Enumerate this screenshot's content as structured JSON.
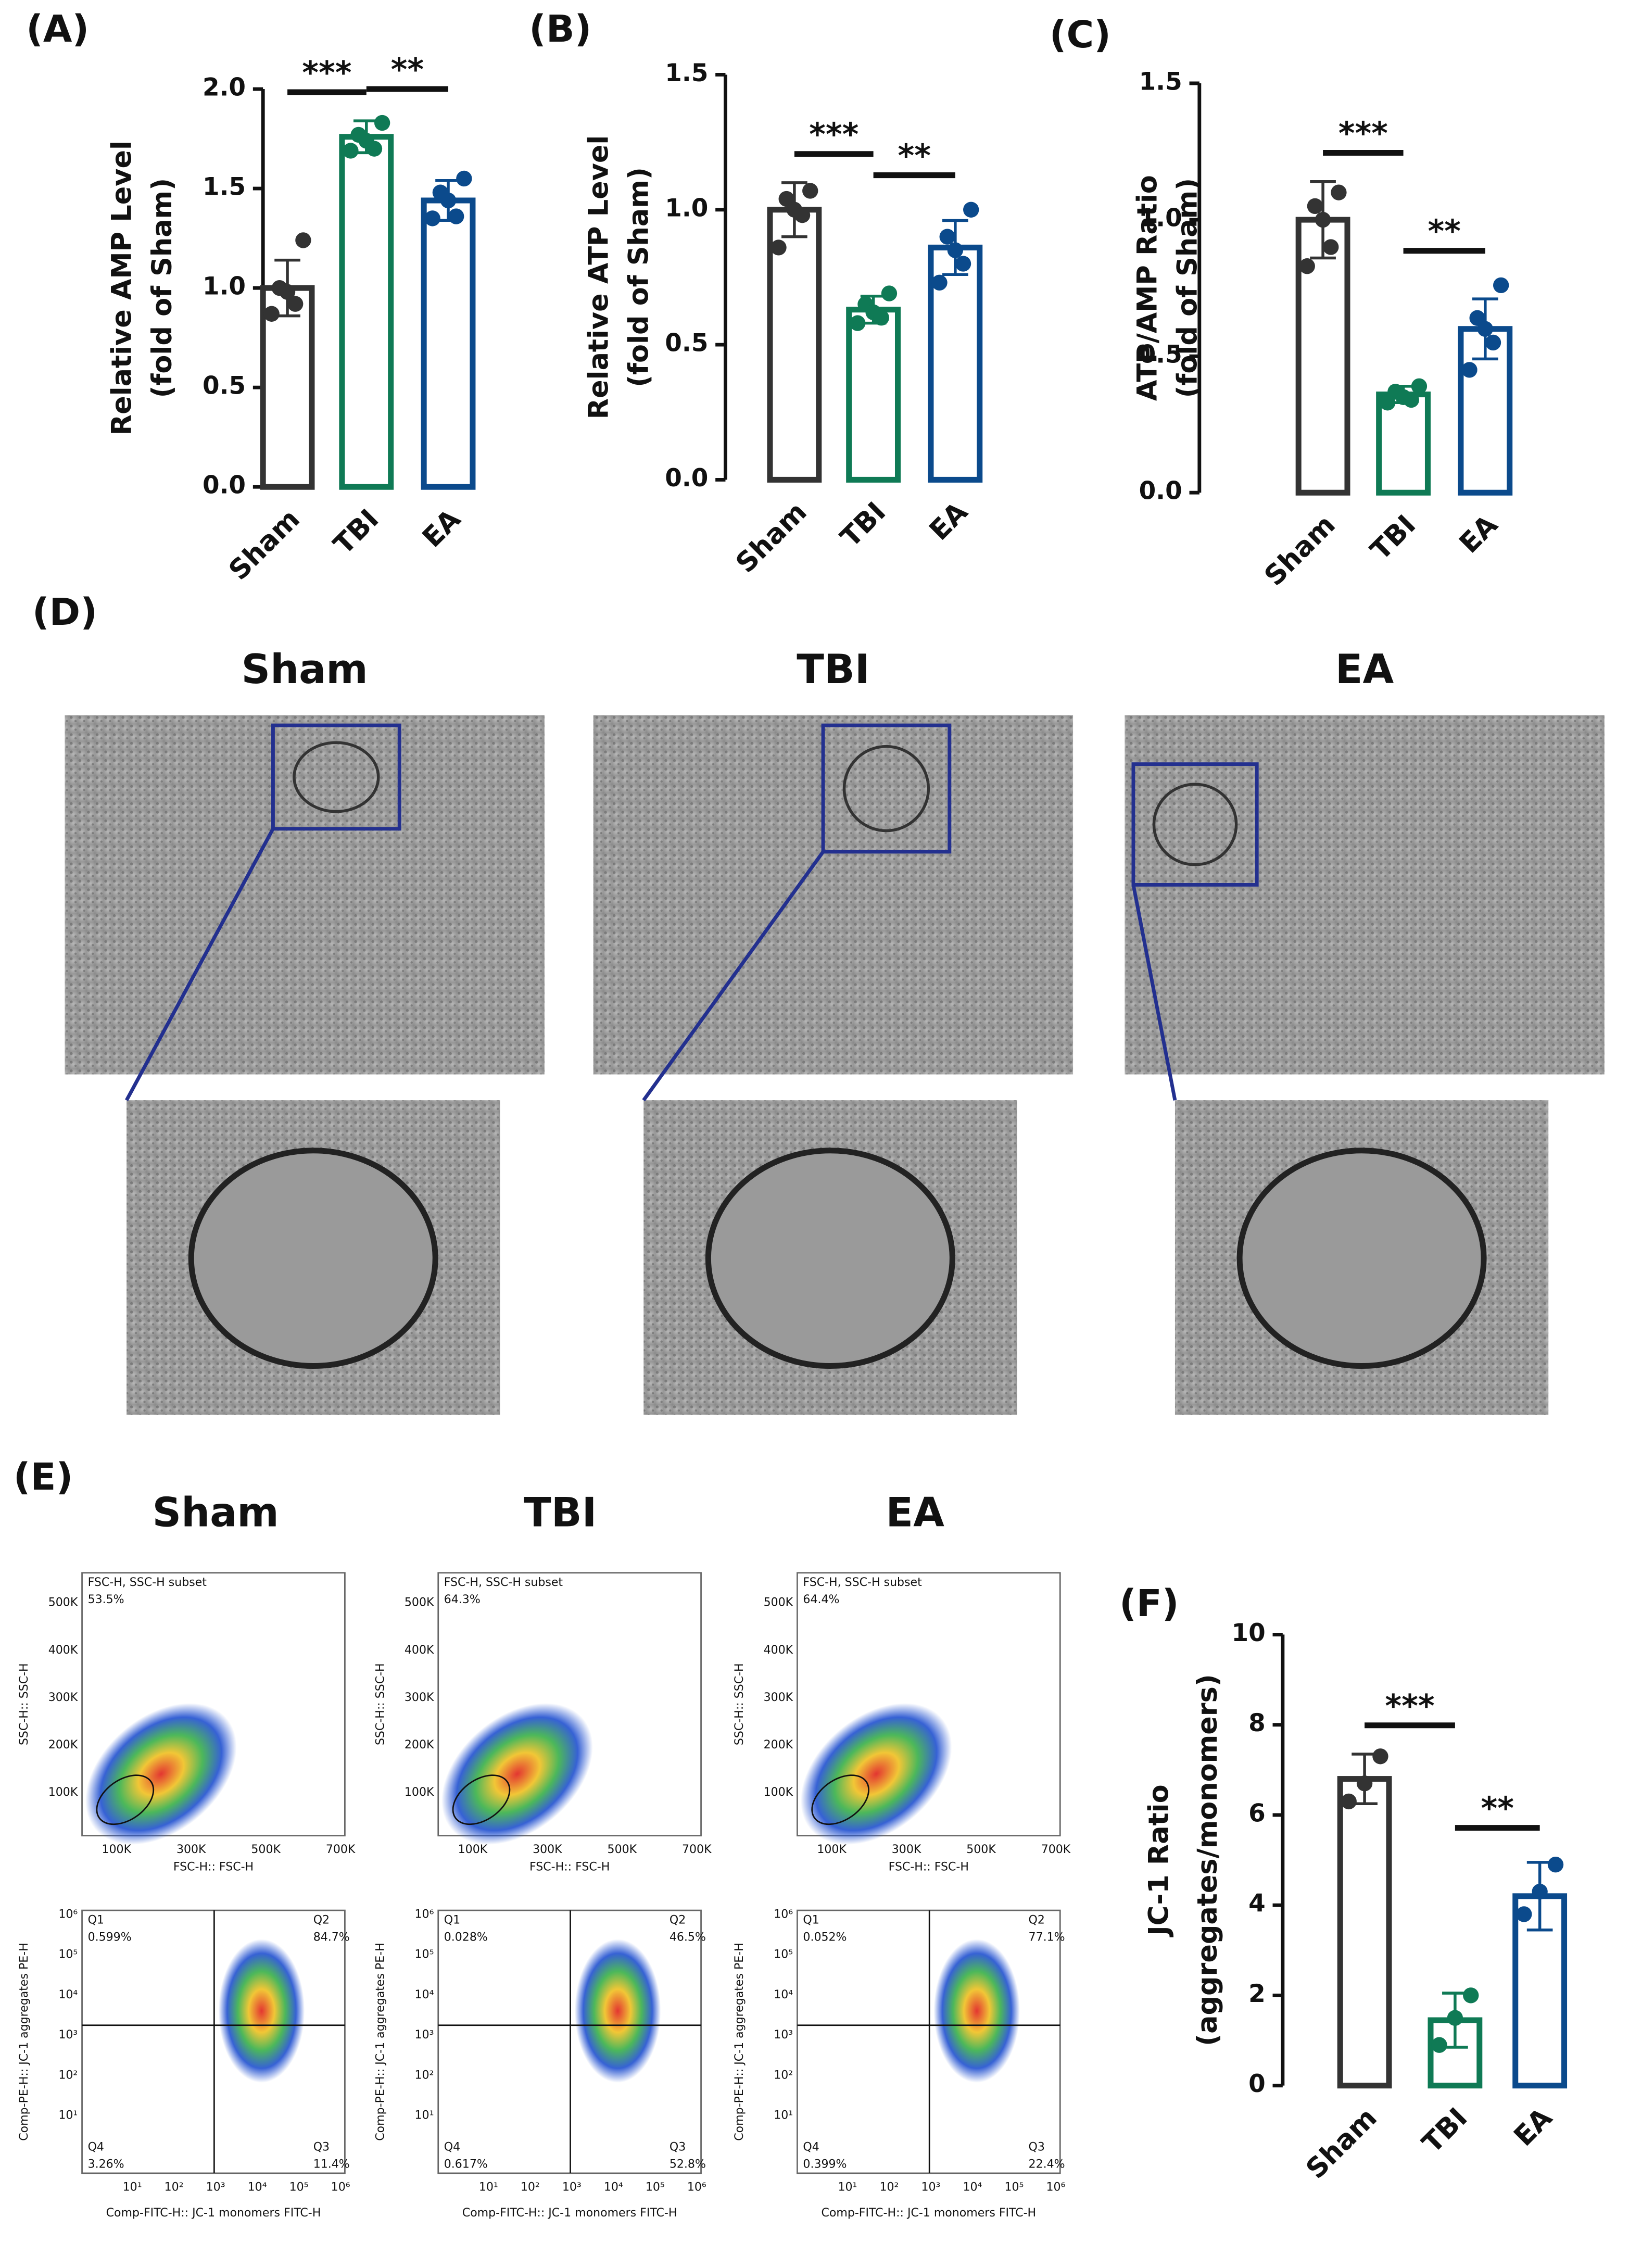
{
  "chart_data": [
    {
      "type": "bar",
      "panel": "(A)",
      "ylabel": [
        "Relative AMP Level",
        "(fold of Sham)"
      ],
      "categories": [
        "Sham",
        "TBI",
        "EA"
      ],
      "colors": [
        "#333333",
        "#0f7a55",
        "#0b4a8c"
      ],
      "values": [
        1.0,
        1.76,
        1.44
      ],
      "errors": [
        0.14,
        0.08,
        0.1
      ],
      "points": [
        [
          1.24,
          1.0,
          0.98,
          0.92,
          0.87
        ],
        [
          1.83,
          1.77,
          1.74,
          1.7,
          1.69
        ],
        [
          1.55,
          1.48,
          1.44,
          1.36,
          1.35
        ]
      ],
      "significance": [
        "***",
        "**"
      ],
      "ylim": [
        0,
        2.0
      ],
      "yticks": [
        {
          "value": 0,
          "label": "0.0"
        },
        {
          "value": 0.5,
          "label": "0.5"
        },
        {
          "value": 1,
          "label": "1.0"
        },
        {
          "value": 1.5,
          "label": "1.5"
        },
        {
          "value": 2,
          "label": "2.0"
        }
      ]
    },
    {
      "type": "bar",
      "panel": "(B)",
      "ylabel": [
        "Relative ATP Level",
        "(fold of Sham)"
      ],
      "categories": [
        "Sham",
        "TBI",
        "EA"
      ],
      "colors": [
        "#333333",
        "#0f7a55",
        "#0b4a8c"
      ],
      "values": [
        1.0,
        0.63,
        0.86
      ],
      "errors": [
        0.1,
        0.05,
        0.1
      ],
      "points": [
        [
          1.07,
          1.04,
          1.0,
          0.98,
          0.86
        ],
        [
          0.69,
          0.65,
          0.62,
          0.6,
          0.58
        ],
        [
          1.0,
          0.9,
          0.85,
          0.8,
          0.73
        ]
      ],
      "significance": [
        "***",
        "**"
      ],
      "ylim": [
        0,
        1.5
      ],
      "yticks": [
        {
          "value": 0,
          "label": "0.0"
        },
        {
          "value": 0.5,
          "label": "0.5"
        },
        {
          "value": 1,
          "label": "1.0"
        },
        {
          "value": 1.5,
          "label": "1.5"
        }
      ]
    },
    {
      "type": "bar",
      "panel": "(C)",
      "ylabel": [
        "ATP/AMP Ratio",
        "(fold of Sham)"
      ],
      "categories": [
        "Sham",
        "TBI",
        "EA"
      ],
      "colors": [
        "#333333",
        "#0f7a55",
        "#0b4a8c"
      ],
      "values": [
        1.0,
        0.36,
        0.6
      ],
      "errors": [
        0.14,
        0.03,
        0.11
      ],
      "points": [
        [
          1.1,
          1.05,
          1.0,
          0.9,
          0.83
        ],
        [
          0.39,
          0.37,
          0.35,
          0.34,
          0.33
        ],
        [
          0.76,
          0.64,
          0.6,
          0.55,
          0.45
        ]
      ],
      "significance": [
        "***",
        "**"
      ],
      "ylim": [
        0,
        1.5
      ],
      "yticks": [
        {
          "value": 0,
          "label": "0.0"
        },
        {
          "value": 0.5,
          "label": "0.5"
        },
        {
          "value": 1,
          "label": "1.0"
        },
        {
          "value": 1.5,
          "label": "1.5"
        }
      ]
    },
    {
      "type": "bar",
      "panel": "(F)",
      "ylabel": [
        "JC-1 Ratio",
        "(aggregates/monomers)"
      ],
      "categories": [
        "Sham",
        "TBI",
        "EA"
      ],
      "colors": [
        "#333333",
        "#0f7a55",
        "#0b4a8c"
      ],
      "values": [
        6.8,
        1.45,
        4.2
      ],
      "errors": [
        0.55,
        0.6,
        0.75
      ],
      "points": [
        [
          7.3,
          6.7,
          6.3
        ],
        [
          2.0,
          1.5,
          0.9
        ],
        [
          4.9,
          4.3,
          3.8
        ]
      ],
      "significance": [
        "***",
        "**"
      ],
      "ylim": [
        0,
        10
      ],
      "yticks": [
        0,
        2,
        4,
        6,
        8,
        10
      ]
    }
  ],
  "panel_d": {
    "label": "(D)",
    "groups": [
      "Sham",
      "TBI",
      "EA"
    ]
  },
  "panel_e": {
    "label": "(E)",
    "groups": [
      "Sham",
      "TBI",
      "EA"
    ],
    "gate_label": "FSC-H, SSC-H subset",
    "gate_pct": [
      "53.5%",
      "64.3%",
      "64.4%"
    ],
    "fsc_xlabel": "FSC-H:: FSC-H",
    "fsc_ylabel": "SSC-H:: SSC-H",
    "fsc_xticks": [
      "100K",
      "300K",
      "500K",
      "700K"
    ],
    "fsc_yticks": [
      "100K",
      "200K",
      "300K",
      "400K",
      "500K"
    ],
    "jc_xlabel": "Comp-FITC-H:: JC-1 monomers   FITC-H",
    "jc_ylabel": "Comp-PE-H:: JC-1 aggregates  PE-H",
    "log_ticks": [
      "10¹",
      "10²",
      "10³",
      "10⁴",
      "10⁵",
      "10⁶"
    ],
    "quadrant_names": [
      "Q1",
      "Q2",
      "Q3",
      "Q4"
    ],
    "quadrants": [
      [
        "0.599%",
        "84.7%",
        "11.4%",
        "3.26%"
      ],
      [
        "0.028%",
        "46.5%",
        "52.8%",
        "0.617%"
      ],
      [
        "0.052%",
        "77.1%",
        "22.4%",
        "0.399%"
      ]
    ]
  }
}
